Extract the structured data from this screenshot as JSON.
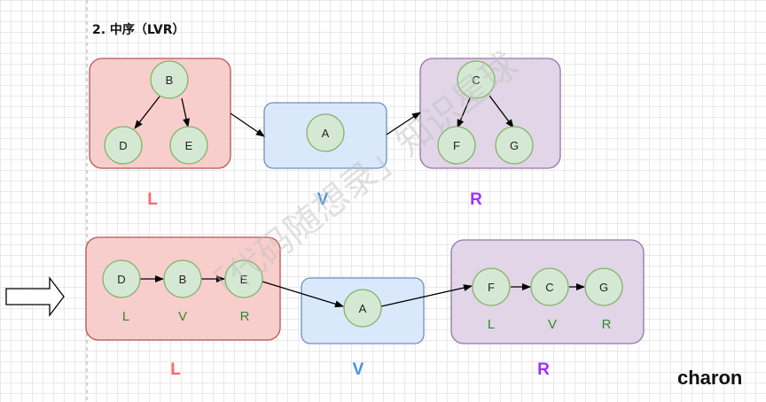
{
  "title": "2. 中序（LVR）",
  "signature": "charon",
  "watermark": "「代码随想录」知识星球",
  "colors": {
    "left_fill": "#f8cecc",
    "left_stroke": "#b85450",
    "mid_fill": "#dae8fc",
    "mid_stroke": "#6c8ebf",
    "right_fill": "#e1d5e7",
    "right_stroke": "#9673a6",
    "node_fill": "#d5e8d4",
    "node_stroke": "#82b366",
    "label_L": "#ff6666",
    "label_V": "#4a90e2",
    "label_R": "#9933ff",
    "sub_label": "#2e8b2e"
  },
  "top": {
    "left_tree": {
      "root": "B",
      "left": "D",
      "right": "E"
    },
    "middle": {
      "node": "A"
    },
    "right_tree": {
      "root": "C",
      "left": "F",
      "right": "G"
    },
    "labels": {
      "L": "L",
      "V": "V",
      "R": "R"
    }
  },
  "bottom": {
    "left_chain": [
      "D",
      "B",
      "E"
    ],
    "left_sub": [
      "L",
      "V",
      "R"
    ],
    "middle": {
      "node": "A"
    },
    "right_chain": [
      "F",
      "C",
      "G"
    ],
    "right_sub": [
      "L",
      "V",
      "R"
    ],
    "labels": {
      "L": "L",
      "V": "V",
      "R": "R"
    }
  }
}
